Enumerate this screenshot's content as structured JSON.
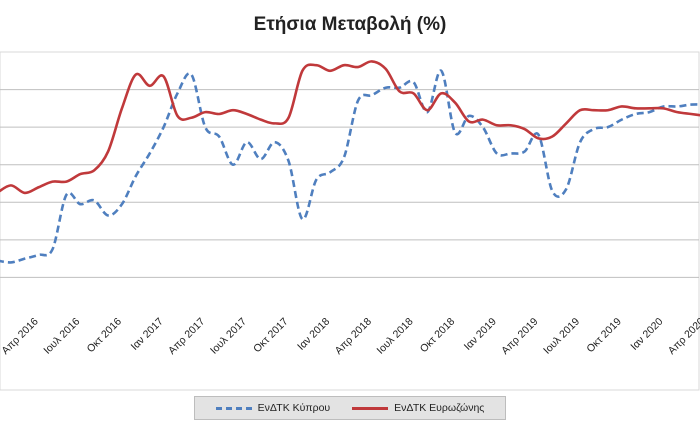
{
  "chart_data": {
    "type": "line",
    "title": "Ετήσια Μεταβολή (%)",
    "xlabel": "",
    "ylabel": "",
    "grid": true,
    "legend_position": "bottom",
    "x": [
      "Ιαν 2016",
      "Φεβ 2016",
      "Μαρ 2016",
      "Απρ 2016",
      "Μαϊ 2016",
      "Ιουν 2016",
      "Ιουλ 2016",
      "Αυγ 2016",
      "Σεπ 2016",
      "Οκτ 2016",
      "Νοε 2016",
      "Δεκ 2016",
      "Ιαν 2017",
      "Φεβ 2017",
      "Μαρ 2017",
      "Απρ 2017",
      "Μαϊ 2017",
      "Ιουν 2017",
      "Ιουλ 2017",
      "Αυγ 2017",
      "Σεπ 2017",
      "Οκτ 2017",
      "Νοε 2017",
      "Δεκ 2017",
      "Ιαν 2018",
      "Φεβ 2018",
      "Μαρ 2018",
      "Απρ 2018",
      "Μαϊ 2018",
      "Ιουν 2018",
      "Ιουλ 2018",
      "Αυγ 2018",
      "Σεπ 2018",
      "Οκτ 2018",
      "Νοε 2018",
      "Δεκ 2018",
      "Ιαν 2019",
      "Φεβ 2019",
      "Μαρ 2019",
      "Απρ 2019",
      "Μαϊ 2019",
      "Ιουν 2019",
      "Ιουλ 2019",
      "Αυγ 2019",
      "Σεπ 2019",
      "Οκτ 2019",
      "Νοε 2019",
      "Δεκ 2019",
      "Ιαν 2020",
      "Φεβ 2020",
      "Μαρ 2020",
      "Απρ 2020"
    ],
    "tick_labels": [
      "Απρ 2016",
      "Ιουλ 2016",
      "Οκτ 2016",
      "Ιαν 2017",
      "Απρ 2017",
      "Ιουλ 2017",
      "Οκτ 2017",
      "Ιαν 2018",
      "Απρ 2018",
      "Ιουλ 2018",
      "Οκτ 2018",
      "Ιαν 2019",
      "Απρ 2019",
      "Ιουλ 2019",
      "Οκτ 2019",
      "Ιαν 2020",
      "Απρ 2020"
    ],
    "ylim": [
      0,
      7
    ],
    "y_gridlines": [
      1,
      2,
      3,
      4,
      5,
      6
    ],
    "series": [
      {
        "name": "ΕνΔΤΚ Κύπρου",
        "style": "dashed",
        "color": "#4f7fbf",
        "values": [
          1.45,
          1.4,
          1.5,
          1.6,
          1.75,
          3.2,
          2.95,
          3.05,
          2.65,
          2.95,
          3.7,
          4.3,
          5.0,
          5.9,
          6.4,
          5.0,
          4.75,
          4.0,
          4.6,
          4.15,
          4.6,
          4.1,
          2.55,
          3.6,
          3.8,
          4.2,
          5.7,
          5.85,
          6.05,
          6.05,
          6.2,
          5.4,
          6.5,
          4.85,
          5.3,
          5.0,
          4.3,
          4.3,
          4.35,
          4.8,
          3.3,
          3.35,
          4.6,
          4.95,
          5.0,
          5.2,
          5.35,
          5.4,
          5.55,
          5.55,
          5.6,
          5.6
        ]
      },
      {
        "name": "ΕνΔΤΚ Ευρωζώνης",
        "style": "solid",
        "color": "#c0393b",
        "values": [
          3.25,
          3.45,
          3.25,
          3.4,
          3.55,
          3.55,
          3.75,
          3.85,
          4.35,
          5.5,
          6.4,
          6.1,
          6.35,
          5.3,
          5.25,
          5.4,
          5.35,
          5.45,
          5.35,
          5.2,
          5.1,
          5.25,
          6.5,
          6.65,
          6.5,
          6.65,
          6.6,
          6.75,
          6.55,
          5.95,
          5.9,
          5.45,
          5.9,
          5.65,
          5.15,
          5.2,
          5.05,
          5.05,
          4.95,
          4.7,
          4.75,
          5.1,
          5.45,
          5.45,
          5.45,
          5.55,
          5.5,
          5.5,
          5.5,
          5.4,
          5.35,
          5.3
        ]
      }
    ]
  }
}
